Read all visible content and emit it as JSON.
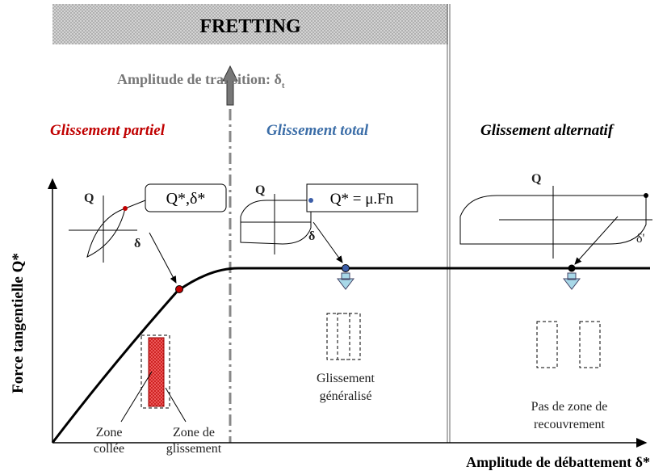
{
  "header": {
    "title": "FRETTING"
  },
  "transition": {
    "label": "Amplitude de transition: δ",
    "subscript": "t"
  },
  "regimes": {
    "partial": "Glissement partiel",
    "total": "Glissement total",
    "alternating": "Glissement alternatif"
  },
  "axes": {
    "y": "Force tangentielle Q*",
    "x": "Amplitude de débattement δ*"
  },
  "loops": [
    {
      "q": "Q",
      "d": "δ",
      "box": "Q*,δ*"
    },
    {
      "q": "Q",
      "d": "δ",
      "box": "Q* = μ.Fn"
    },
    {
      "q": "Q",
      "d": "δ'"
    }
  ],
  "contacts": {
    "stuck": [
      "Zone",
      "collée"
    ],
    "slip": [
      "Zone de",
      "glissement"
    ],
    "general": [
      "Glissement",
      "généralisé"
    ],
    "none": [
      "Pas de zone de",
      "recouvrement"
    ]
  }
}
